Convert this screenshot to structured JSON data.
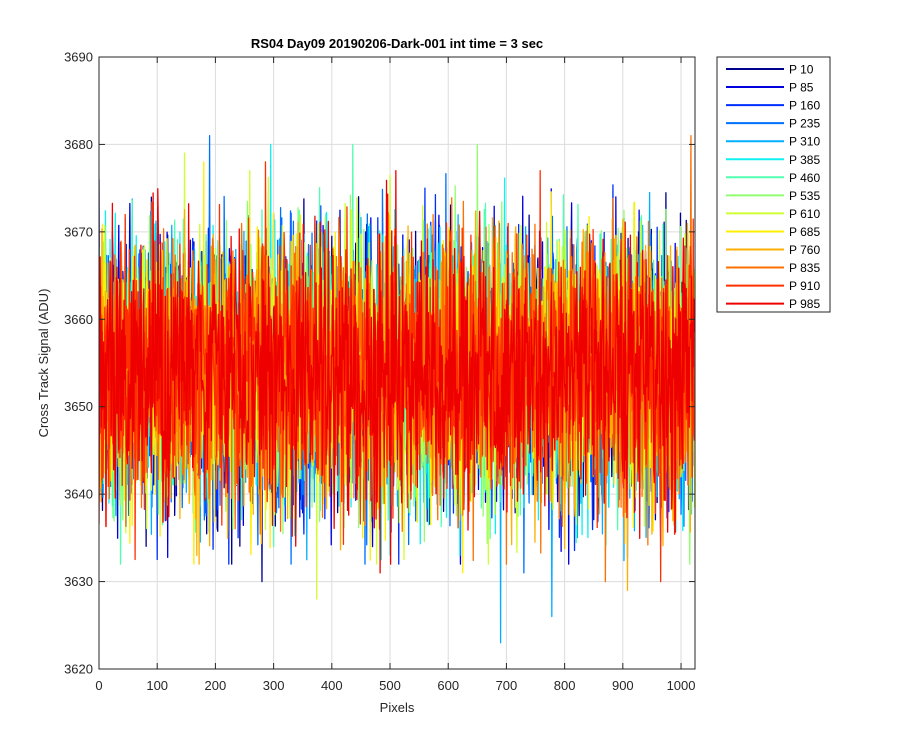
{
  "chart_data": {
    "type": "line",
    "title": "RS04 Day09 20190206-Dark-001 int time = 3 sec",
    "xlabel": "Pixels",
    "ylabel": "Cross Track Signal (ADU)",
    "xlim": [
      0,
      1024
    ],
    "ylim": [
      3620,
      3690
    ],
    "xticks": [
      "0",
      "100",
      "200",
      "300",
      "400",
      "500",
      "600",
      "700",
      "800",
      "900",
      "1000"
    ],
    "yticks": [
      "3620",
      "3630",
      "3640",
      "3650",
      "3660",
      "3670",
      "3680",
      "3690"
    ],
    "grid": true,
    "legend_position": "outside-top-right",
    "n_points": 1024,
    "mean": 3654,
    "noise_sd": 7.5,
    "series": [
      {
        "name": "P 10",
        "color": "#00008F",
        "extremes": [
          [
            0,
            3676
          ],
          [
            280,
            3630
          ]
        ]
      },
      {
        "name": "P 85",
        "color": "#0000DF",
        "extremes": [
          [
            888,
            3674
          ],
          [
            470,
            3634
          ]
        ]
      },
      {
        "name": "P 160",
        "color": "#0030FF",
        "extremes": [
          [
            560,
            3675
          ],
          [
            515,
            3632
          ]
        ]
      },
      {
        "name": "P 235",
        "color": "#0070FF",
        "extremes": [
          [
            190,
            3681
          ],
          [
            730,
            3631
          ]
        ]
      },
      {
        "name": "P 310",
        "color": "#00AFFF",
        "extremes": [
          [
            690,
            3623
          ],
          [
            778,
            3626
          ]
        ]
      },
      {
        "name": "P 385",
        "color": "#10F0EF",
        "extremes": [
          [
            295,
            3680
          ],
          [
            620,
            3633
          ]
        ]
      },
      {
        "name": "P 460",
        "color": "#50FFAF",
        "extremes": [
          [
            436,
            3680
          ],
          [
            300,
            3634
          ]
        ]
      },
      {
        "name": "P 535",
        "color": "#90FF6F",
        "extremes": [
          [
            650,
            3680
          ],
          [
            230,
            3636
          ]
        ]
      },
      {
        "name": "P 610",
        "color": "#CFFF30",
        "extremes": [
          [
            374,
            3628
          ],
          [
            147,
            3679
          ]
        ]
      },
      {
        "name": "P 685",
        "color": "#FFEF00",
        "extremes": [
          [
            180,
            3678
          ],
          [
            625,
            3631
          ]
        ]
      },
      {
        "name": "P 760",
        "color": "#FFAF00",
        "extremes": [
          [
            168,
            3633
          ],
          [
            908,
            3629
          ]
        ]
      },
      {
        "name": "P 835",
        "color": "#FF7000",
        "extremes": [
          [
            1017,
            3681
          ],
          [
            870,
            3630
          ]
        ]
      },
      {
        "name": "P 910",
        "color": "#FF3000",
        "extremes": [
          [
            286,
            3678
          ],
          [
            965,
            3630
          ]
        ]
      },
      {
        "name": "P 985",
        "color": "#EF0000",
        "extremes": [
          [
            510,
            3677
          ],
          [
            483,
            3631
          ]
        ]
      }
    ]
  }
}
